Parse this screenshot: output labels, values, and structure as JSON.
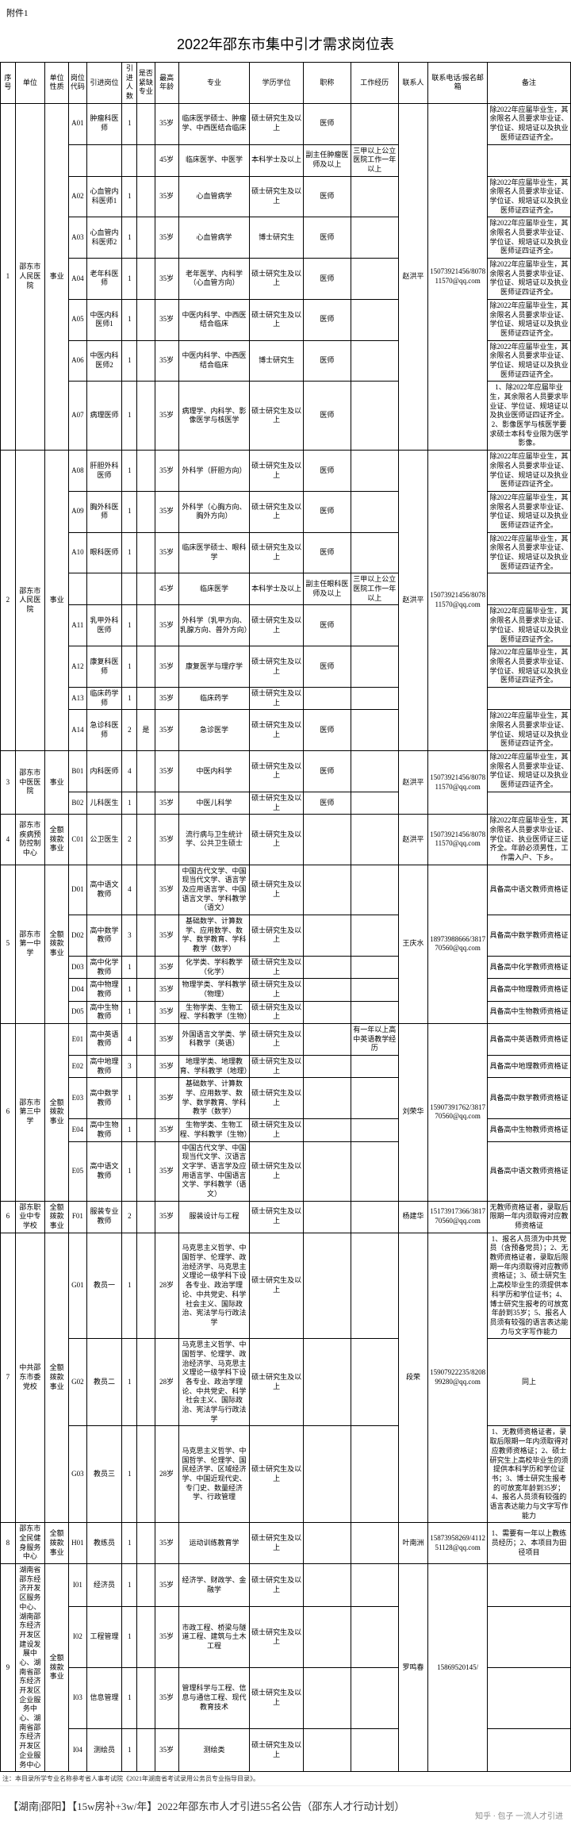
{
  "attachment_label": "附件1",
  "title": "2022年邵东市集中引才需求岗位表",
  "headers": [
    "序号",
    "单位",
    "单位性质",
    "岗位代码",
    "引进岗位",
    "引进人数",
    "是否紧缺专业",
    "最高年龄",
    "专业",
    "学历学位",
    "职称",
    "工作经历",
    "联系人",
    "联系电话/报名邮箱",
    "备注"
  ],
  "rows": [
    {
      "seq": "1",
      "unit": "邵东市人民医院",
      "nature": "事业",
      "contact": "赵洪平",
      "phone": "15073921456/807811570@qq.com",
      "items": [
        {
          "code": "A01",
          "pos": "肿瘤科医师",
          "num": "1",
          "short": "",
          "age": "35岁",
          "major": "临床医学硕士、肿瘤学、中西医结合临床",
          "edu": "硕士研究生及以上",
          "title": "医师",
          "exp": "",
          "remark": "除2022年应届毕业生，其余限名人员要求毕业证、学位证、规培证以及执业医师证四证齐全。"
        },
        {
          "code": "",
          "pos": "",
          "num": "",
          "short": "",
          "age": "45岁",
          "major": "临床医学、中医学",
          "edu": "本科学士及以上",
          "title": "副主任肿瘤医师及以上",
          "exp": "三甲以上公立医院工作一年以上",
          "remark": ""
        },
        {
          "code": "A02",
          "pos": "心血管内科医师1",
          "num": "1",
          "short": "",
          "age": "35岁",
          "major": "心血管病学",
          "edu": "硕士研究生及以上",
          "title": "医师",
          "exp": "",
          "remark": "除2022年应届毕业生，其余限名人员要求毕业证、学位证、规培证以及执业医师证四证齐全。"
        },
        {
          "code": "A03",
          "pos": "心血管内科医师2",
          "num": "1",
          "short": "",
          "age": "35岁",
          "major": "心血管病学",
          "edu": "博士研究生",
          "title": "医师",
          "exp": "",
          "remark": "除2022年应届毕业生，其余限名人员要求毕业证、学位证、规培证以及执业医师证四证齐全。"
        },
        {
          "code": "A04",
          "pos": "老年科医师",
          "num": "1",
          "short": "",
          "age": "35岁",
          "major": "老年医学、内科学（心血管方向）",
          "edu": "硕士研究生及以上",
          "title": "医师",
          "exp": "",
          "remark": "除2022年应届毕业生，其余限名人员要求毕业证、学位证、规培证以及执业医师证四证齐全。"
        },
        {
          "code": "A05",
          "pos": "中医内科医师1",
          "num": "1",
          "short": "",
          "age": "35岁",
          "major": "中医内科学、中西医结合临床",
          "edu": "硕士研究生及以上",
          "title": "医师",
          "exp": "",
          "remark": "除2022年应届毕业生，其余限名人员要求毕业证、学位证、规培证以及执业医师证四证齐全。"
        },
        {
          "code": "A06",
          "pos": "中医内科医师2",
          "num": "1",
          "short": "",
          "age": "35岁",
          "major": "中医内科学、中西医结合临床",
          "edu": "博士研究生",
          "title": "医师",
          "exp": "",
          "remark": "除2022年应届毕业生，其余限名人员要求毕业证、学位证、规培证以及执业医师证四证齐全。"
        },
        {
          "code": "A07",
          "pos": "病理医师",
          "num": "1",
          "short": "",
          "age": "35岁",
          "major": "病理学、内科学、影像医学与核医学",
          "edu": "硕士研究生及以上",
          "title": "医师",
          "exp": "",
          "remark": "1、除2022年应届毕业生，其余限名人员要求毕业证、学位证、规培证以及执业医师证四证齐全。2、影像医学与核医学要求硕士本科专业限为医学影像。"
        }
      ]
    },
    {
      "seq": "2",
      "unit": "邵东市人民医院",
      "nature": "事业",
      "contact": "赵洪平",
      "phone": "15073921456/807811570@qq.com",
      "items": [
        {
          "code": "A08",
          "pos": "肝胆外科医师",
          "num": "1",
          "short": "",
          "age": "35岁",
          "major": "外科学（肝胆方向）",
          "edu": "硕士研究生及以上",
          "title": "医师",
          "exp": "",
          "remark": "除2022年应届毕业生，其余限名人员要求毕业证、学位证、规培证以及执业医师证四证齐全。"
        },
        {
          "code": "A09",
          "pos": "胸外科医师",
          "num": "1",
          "short": "",
          "age": "35岁",
          "major": "外科学（心胸方向、胸外方向）",
          "edu": "硕士研究生及以上",
          "title": "医师",
          "exp": "",
          "remark": "除2022年应届毕业生，其余限名人员要求毕业证、学位证、规培证以及执业医师证四证齐全。"
        },
        {
          "code": "A10",
          "pos": "眼科医师",
          "num": "1",
          "short": "",
          "age": "35岁",
          "major": "临床医学硕士、眼科学",
          "edu": "硕士研究生及以上",
          "title": "医师",
          "exp": "",
          "remark": "除2022年应届毕业生，其余限名人员要求毕业证、学位证、规培证以及执业医师证四证齐全。"
        },
        {
          "code": "",
          "pos": "",
          "num": "",
          "short": "",
          "age": "45岁",
          "major": "临床医学",
          "edu": "本科学士及以上",
          "title": "副主任眼科医师及以上",
          "exp": "三甲以上公立医院工作一年以上",
          "remark": ""
        },
        {
          "code": "A11",
          "pos": "乳甲外科医师",
          "num": "1",
          "short": "",
          "age": "35岁",
          "major": "外科学（乳甲方向、乳腺方向、普外方向）",
          "edu": "硕士研究生及以上",
          "title": "医师",
          "exp": "",
          "remark": "除2022年应届毕业生，其余限名人员要求毕业证、学位证、规培证以及执业医师证四证齐全。"
        },
        {
          "code": "A12",
          "pos": "康复科医师",
          "num": "1",
          "short": "",
          "age": "35岁",
          "major": "康复医学与理疗学",
          "edu": "硕士研究生及以上",
          "title": "医师",
          "exp": "",
          "remark": "除2022年应届毕业生，其余限名人员要求毕业证、学位证、规培证以及执业医师证四证齐全。"
        },
        {
          "code": "A13",
          "pos": "临床药学师",
          "num": "1",
          "short": "",
          "age": "35岁",
          "major": "临床药学",
          "edu": "硕士研究生及以上",
          "title": "",
          "exp": "",
          "remark": ""
        },
        {
          "code": "A14",
          "pos": "急诊科医师",
          "num": "2",
          "short": "是",
          "age": "35岁",
          "major": "急诊医学",
          "edu": "硕士研究生及以上",
          "title": "医师",
          "exp": "",
          "remark": "除2022年应届毕业生，其余限名人员要求毕业证、学位证、规培证以及执业医师证四证齐全。"
        }
      ]
    },
    {
      "seq": "3",
      "unit": "邵东市中医医院",
      "nature": "事业",
      "contact": "赵洪平",
      "phone": "15073921456/807811570@qq.com",
      "items": [
        {
          "code": "B01",
          "pos": "内科医师",
          "num": "4",
          "short": "",
          "age": "35岁",
          "major": "中医内科学",
          "edu": "硕士研究生及以上",
          "title": "医师",
          "exp": "",
          "remark": "除2022年应届毕业生，其余限名人员要求毕业证、学位证、规培证以及执业医师证四证齐全。"
        },
        {
          "code": "B02",
          "pos": "儿科医生",
          "num": "1",
          "short": "",
          "age": "35岁",
          "major": "中医儿科学",
          "edu": "硕士研究生及以上",
          "title": "医师",
          "exp": "",
          "remark": ""
        }
      ]
    },
    {
      "seq": "4",
      "unit": "邵东市疾病预防控制中心",
      "nature": "全额拨款事业",
      "contact": "赵洪平",
      "phone": "15073921456/807811570@qq.com",
      "items": [
        {
          "code": "C01",
          "pos": "公卫医生",
          "num": "2",
          "short": "",
          "age": "35岁",
          "major": "流行病与卫生统计学、公共卫生硕士",
          "edu": "硕士研究生及以上",
          "title": "",
          "exp": "",
          "remark": "除2022年应届毕业生，其余限名人员要求毕业证、学位证、执业医师证三证齐全。年龄必须男性，工作需入户、下乡。"
        }
      ]
    },
    {
      "seq": "5",
      "unit": "邵东市第一中学",
      "nature": "全额拨款事业",
      "contact": "王庆水",
      "phone": "18973988666/381770560@qq.com",
      "items": [
        {
          "code": "D01",
          "pos": "高中语文教师",
          "num": "4",
          "short": "",
          "age": "35岁",
          "major": "中国古代文学、中国现当代文学、语言学及应用语言学、中国语言文学、学科教学（语文）",
          "edu": "硕士研究生及以上",
          "title": "",
          "exp": "",
          "remark": "具备高中语文教师资格证"
        },
        {
          "code": "D02",
          "pos": "高中数学教师",
          "num": "3",
          "short": "",
          "age": "35岁",
          "major": "基础数学、计算数学、应用数学、数学、数学教育、学科教学（数学）",
          "edu": "硕士研究生及以上",
          "title": "",
          "exp": "",
          "remark": "具备高中数学教师资格证"
        },
        {
          "code": "D03",
          "pos": "高中化学教师",
          "num": "1",
          "short": "",
          "age": "35岁",
          "major": "化学类、学科教学（化学）",
          "edu": "硕士研究生及以上",
          "title": "",
          "exp": "",
          "remark": "具备高中化学教师资格证"
        },
        {
          "code": "D04",
          "pos": "高中物理教师",
          "num": "1",
          "short": "",
          "age": "35岁",
          "major": "物理学类、学科教学（物理）",
          "edu": "硕士研究生及以上",
          "title": "",
          "exp": "",
          "remark": "具备高中物理教师资格证"
        },
        {
          "code": "D05",
          "pos": "高中生物教师",
          "num": "1",
          "short": "",
          "age": "35岁",
          "major": "生物学类、生物工程、学科教学（生物）",
          "edu": "硕士研究生及以上",
          "title": "",
          "exp": "",
          "remark": "具备高中生物教师资格证"
        }
      ]
    },
    {
      "seq": "6",
      "unit": "邵东市第三中学",
      "nature": "全额拨款事业",
      "contact": "刘荣华",
      "phone": "15907391762/381770560@qq.com",
      "items": [
        {
          "code": "E01",
          "pos": "高中英语教师",
          "num": "4",
          "short": "",
          "age": "35岁",
          "major": "外国语言文学类、学科教学（英语）",
          "edu": "硕士研究生及以上",
          "title": "",
          "exp": "有一年以上高中英语教学经历",
          "remark": "具备高中英语教师资格证"
        },
        {
          "code": "E02",
          "pos": "高中地理教师",
          "num": "3",
          "short": "",
          "age": "35岁",
          "major": "地理学类、地理教育、学科教学（地理）",
          "edu": "硕士研究生及以上",
          "title": "",
          "exp": "",
          "remark": "具备高中地理教师资格证"
        },
        {
          "code": "E03",
          "pos": "高中数学教师",
          "num": "1",
          "short": "",
          "age": "35岁",
          "major": "基础数学、计算数学、应用数学、数学、数学教育、学科教学（数学）",
          "edu": "硕士研究生及以上",
          "title": "",
          "exp": "",
          "remark": "具备高中数学教师资格证"
        },
        {
          "code": "E04",
          "pos": "高中生物教师",
          "num": "1",
          "short": "",
          "age": "35岁",
          "major": "生物学类、生物工程、学科教学（生物）",
          "edu": "硕士研究生及以上",
          "title": "",
          "exp": "",
          "remark": "具备高中生物教师资格证"
        },
        {
          "code": "E05",
          "pos": "高中语文教师",
          "num": "1",
          "short": "",
          "age": "35岁",
          "major": "中国古代文学、中国现当代文学、汉语言文字学、语言学及应用语言学、中国语言文学、学科教学（语文）",
          "edu": "硕士研究生及以上",
          "title": "",
          "exp": "",
          "remark": "具备高中语文教师资格证"
        }
      ]
    },
    {
      "seq": "6",
      "unit": "邵东职业中专学校",
      "nature": "全额拨款事业",
      "contact": "杨建华",
      "phone": "15173917366/381770560@qq.com",
      "items": [
        {
          "code": "F01",
          "pos": "服装专业教师",
          "num": "2",
          "short": "",
          "age": "35岁",
          "major": "服装设计与工程",
          "edu": "硕士研究生及以上",
          "title": "",
          "exp": "",
          "remark": "无教师资格证者，录取后限期一年内须取得对应教师资格证"
        }
      ]
    },
    {
      "seq": "7",
      "unit": "中共邵东市委党校",
      "nature": "全额拨款事业",
      "contact": "段荣",
      "phone": "15907922235/820899280@qq.com",
      "items": [
        {
          "code": "G01",
          "pos": "教员一",
          "num": "1",
          "short": "",
          "age": "28岁",
          "major": "马克思主义哲学、中国哲学、伦理学、政治经济学、马克思主义理论一级学科下设各专业、政治学理论、中共党史、科学社会主义、国际政治、宪法学与行政法学",
          "edu": "硕士研究生及以上",
          "title": "",
          "exp": "",
          "remark": "1、报名人员须为中共党员（含预备党员）；2、无教师资格证者，录取后限期一年内须取得对应教师资格证；3、硕士研究生上高校毕业生的须提供本科学历和学位证书；4、博士研究生报考的可放宽年龄到35岁；5、报名人员须有较强的语言表达能力与文字写作能力"
        },
        {
          "code": "G02",
          "pos": "教员二",
          "num": "1",
          "short": "",
          "age": "28岁",
          "major": "马克思主义哲学、中国哲学、伦理学、政治经济学、马克思主义理论一级学科下设各专业、政治学理论、中共党史、科学社会主义、国际政治、宪法学与行政法学",
          "edu": "硕士研究生及以上",
          "title": "",
          "exp": "",
          "remark": "同上"
        },
        {
          "code": "G03",
          "pos": "教员三",
          "num": "1",
          "short": "",
          "age": "28岁",
          "major": "马克思主义哲学、中国哲学、伦理学、国民经济学、区域经济学、中国近现代史、专门史、数量经济学、行政管理",
          "edu": "硕士研究生及以上",
          "title": "",
          "exp": "",
          "remark": "1、无教师资格证者，录取后限期一年内须取得对应教师资格证；2、硕士研究生上高校毕业生的须提供本科学历和学位证书；3、博士研究生报考的可放宽年龄到35岁；4、报名人员须有较强的语言表达能力与文字写作能力"
        }
      ]
    },
    {
      "seq": "8",
      "unit": "邵东市全民健身服务中心",
      "nature": "全额拨款事业",
      "contact": "叶南洲",
      "phone": "15873958269/411251128@qq.com",
      "items": [
        {
          "code": "H01",
          "pos": "教练员",
          "num": "1",
          "short": "",
          "age": "35岁",
          "major": "运动训练教育学",
          "edu": "硕士研究生及以上",
          "title": "",
          "exp": "",
          "remark": "1、需要有一年以上教练员经历；2、本项目为田径项目"
        }
      ]
    },
    {
      "seq": "9",
      "unit": "湖南省邵东经济开发区服务中心、湖南邵东经济开发区建设发展中心、湖南省邵东经济开发区企业服务中心、湖南省邵东经济开发区企业服务中心",
      "nature": "全额拨款事业",
      "contact": "罗鸣春",
      "phone": "15869520145/",
      "items": [
        {
          "code": "I01",
          "pos": "经济员",
          "num": "1",
          "short": "",
          "age": "35岁",
          "major": "经济学、财政学、金融学",
          "edu": "硕士研究生及以上",
          "title": "",
          "exp": "",
          "remark": ""
        },
        {
          "code": "I02",
          "pos": "工程管理",
          "num": "1",
          "short": "",
          "age": "35岁",
          "major": "市政工程、桥梁与隧道工程、建筑与土木工程",
          "edu": "硕士研究生及以上",
          "title": "",
          "exp": "",
          "remark": ""
        },
        {
          "code": "I03",
          "pos": "信息管理",
          "num": "1",
          "short": "",
          "age": "35岁",
          "major": "管理科学与工程、信息与通信工程、现代教育技术",
          "edu": "硕士研究生及以上",
          "title": "",
          "exp": "",
          "remark": ""
        },
        {
          "code": "I04",
          "pos": "测绘员",
          "num": "1",
          "short": "",
          "age": "35岁",
          "major": "测绘类",
          "edu": "硕士研究生及以上",
          "title": "",
          "exp": "",
          "remark": ""
        }
      ]
    }
  ],
  "note": "注：本目录所学专业名称参考省人事考试院《2021年湖南省考试录用公务员专业指导目录》。",
  "banner": "【湖南|邵阳】【15w房补+3w/年】2022年邵东市人才引进55名公告（邵东人才行动计划）",
  "banner_sub": "知乎 · 包子 一流人才引进"
}
